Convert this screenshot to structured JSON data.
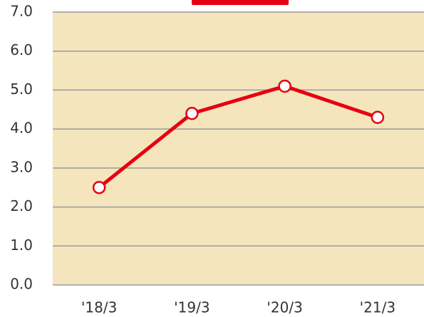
{
  "chart_data": {
    "type": "line",
    "categories": [
      "'18/3",
      "'19/3",
      "'20/3",
      "'21/3"
    ],
    "series": [
      {
        "color": "#e60012",
        "values": [
          2.5,
          4.4,
          5.1,
          4.3
        ]
      }
    ],
    "ylim": [
      0,
      7
    ],
    "yticks": [
      {
        "value": 0,
        "label": "0.0"
      },
      {
        "value": 1,
        "label": "1.0"
      },
      {
        "value": 2,
        "label": "2.0"
      },
      {
        "value": 3,
        "label": "3.0"
      },
      {
        "value": 4,
        "label": "4.0"
      },
      {
        "value": 5,
        "label": "5.0"
      },
      {
        "value": 6,
        "label": "6.0"
      },
      {
        "value": 7,
        "label": "7.0"
      }
    ],
    "grid": true
  }
}
